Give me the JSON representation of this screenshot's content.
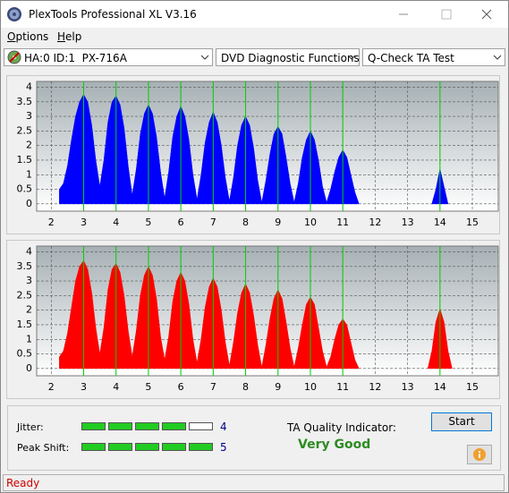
{
  "window": {
    "title": "PlexTools Professional XL V3.16"
  },
  "menu": [
    "Options",
    "Help"
  ],
  "toolbar": {
    "drive": "HA:0 ID:1  PX-716A",
    "function": "DVD Diagnostic Functions",
    "test": "Q-Check TA Test"
  },
  "chart_data": [
    {
      "type": "area",
      "color": "#0000ff",
      "xlim": [
        1.55,
        15.8
      ],
      "ylim": [
        -0.25,
        4.2
      ],
      "xticks": [
        2,
        3,
        4,
        5,
        6,
        7,
        8,
        9,
        10,
        11,
        12,
        13,
        14,
        15
      ],
      "yticks": [
        0,
        0.5,
        1,
        1.5,
        2,
        2.5,
        3,
        3.5,
        4
      ],
      "grid": true,
      "markers": [
        3,
        4,
        5,
        6,
        7,
        8,
        9,
        10,
        11,
        14
      ],
      "marker_color": "#00d000",
      "x": [
        2.25,
        2.375,
        2.5,
        2.625,
        2.75,
        2.875,
        3,
        3.125,
        3.25,
        3.375,
        3.5,
        3.625,
        3.75,
        3.875,
        4,
        4.125,
        4.25,
        4.375,
        4.5,
        4.625,
        4.75,
        4.875,
        5,
        5.125,
        5.25,
        5.375,
        5.5,
        5.625,
        5.75,
        5.875,
        6,
        6.125,
        6.25,
        6.375,
        6.5,
        6.625,
        6.75,
        6.875,
        7,
        7.125,
        7.25,
        7.375,
        7.5,
        7.625,
        7.75,
        7.875,
        8,
        8.125,
        8.25,
        8.375,
        8.5,
        8.625,
        8.75,
        8.875,
        9,
        9.125,
        9.25,
        9.375,
        9.5,
        9.625,
        9.75,
        9.875,
        10,
        10.125,
        10.25,
        10.375,
        10.5,
        10.625,
        10.75,
        10.875,
        11,
        11.125,
        11.25,
        11.375,
        11.5,
        null,
        13.75,
        13.875,
        14,
        14.125,
        14.25
      ],
      "values": [
        0.5,
        0.7,
        1.3,
        2.2,
        3.0,
        3.5,
        3.75,
        3.5,
        2.7,
        1.5,
        0.6,
        1.5,
        2.8,
        3.5,
        3.7,
        3.4,
        2.6,
        1.3,
        0.3,
        1.2,
        2.4,
        3.1,
        3.4,
        3.1,
        2.3,
        1.1,
        0.2,
        1.1,
        2.3,
        3.0,
        3.35,
        3.0,
        2.2,
        1.0,
        0.15,
        1.0,
        2.1,
        2.8,
        3.15,
        2.8,
        2.0,
        0.9,
        0.1,
        0.9,
        2.0,
        2.7,
        3.0,
        2.7,
        1.9,
        0.8,
        0.05,
        0.8,
        1.7,
        2.4,
        2.65,
        2.4,
        1.6,
        0.7,
        0.05,
        0.7,
        1.6,
        2.2,
        2.5,
        2.2,
        1.5,
        0.6,
        0.05,
        0.5,
        1.1,
        1.6,
        1.85,
        1.6,
        1.0,
        0.4,
        0,
        null,
        0,
        0.5,
        1.2,
        0.6,
        0
      ]
    },
    {
      "type": "area",
      "color": "#ff0000",
      "xlim": [
        1.55,
        15.8
      ],
      "ylim": [
        -0.25,
        4.2
      ],
      "xticks": [
        2,
        3,
        4,
        5,
        6,
        7,
        8,
        9,
        10,
        11,
        12,
        13,
        14,
        15
      ],
      "yticks": [
        0,
        0.5,
        1,
        1.5,
        2,
        2.5,
        3,
        3.5,
        4
      ],
      "grid": true,
      "markers": [
        3,
        4,
        5,
        6,
        7,
        8,
        9,
        10,
        11,
        14
      ],
      "marker_color": "#00d000",
      "x": [
        2.25,
        2.375,
        2.5,
        2.625,
        2.75,
        2.875,
        3,
        3.125,
        3.25,
        3.375,
        3.5,
        3.625,
        3.75,
        3.875,
        4,
        4.125,
        4.25,
        4.375,
        4.5,
        4.625,
        4.75,
        4.875,
        5,
        5.125,
        5.25,
        5.375,
        5.5,
        5.625,
        5.75,
        5.875,
        6,
        6.125,
        6.25,
        6.375,
        6.5,
        6.625,
        6.75,
        6.875,
        7,
        7.125,
        7.25,
        7.375,
        7.5,
        7.625,
        7.75,
        7.875,
        8,
        8.125,
        8.25,
        8.375,
        8.5,
        8.625,
        8.75,
        8.875,
        9,
        9.125,
        9.25,
        9.375,
        9.5,
        9.625,
        9.75,
        9.875,
        10,
        10.125,
        10.25,
        10.375,
        10.5,
        10.625,
        10.75,
        10.875,
        11,
        11.125,
        11.25,
        11.375,
        11.5,
        null,
        13.625,
        13.75,
        13.875,
        14,
        14.125,
        14.25,
        14.375
      ],
      "values": [
        0.4,
        0.6,
        1.2,
        2.1,
        3.0,
        3.5,
        3.7,
        3.4,
        2.6,
        1.4,
        0.5,
        1.4,
        2.7,
        3.4,
        3.6,
        3.3,
        2.5,
        1.3,
        0.4,
        1.3,
        2.5,
        3.2,
        3.5,
        3.2,
        2.4,
        1.1,
        0.3,
        1.1,
        2.3,
        3.0,
        3.3,
        3.0,
        2.2,
        1.0,
        0.2,
        1.0,
        2.1,
        2.8,
        3.1,
        2.8,
        2.0,
        0.9,
        0.1,
        0.9,
        1.9,
        2.6,
        2.9,
        2.6,
        1.8,
        0.8,
        0.05,
        0.8,
        1.7,
        2.4,
        2.7,
        2.4,
        1.6,
        0.7,
        0.05,
        0.7,
        1.5,
        2.2,
        2.45,
        2.2,
        1.4,
        0.6,
        0.05,
        0.4,
        1.0,
        1.5,
        1.7,
        1.5,
        0.9,
        0.3,
        0,
        null,
        0,
        0.6,
        1.6,
        2.05,
        1.6,
        0.6,
        0
      ]
    }
  ],
  "results": {
    "jitter_label": "Jitter:",
    "jitter_value": 4,
    "peak_shift_label": "Peak Shift:",
    "peak_shift_value": 5,
    "ta_label": "TA Quality Indicator:",
    "ta_value": "Very Good"
  },
  "buttons": {
    "start": "Start"
  },
  "status": "Ready"
}
